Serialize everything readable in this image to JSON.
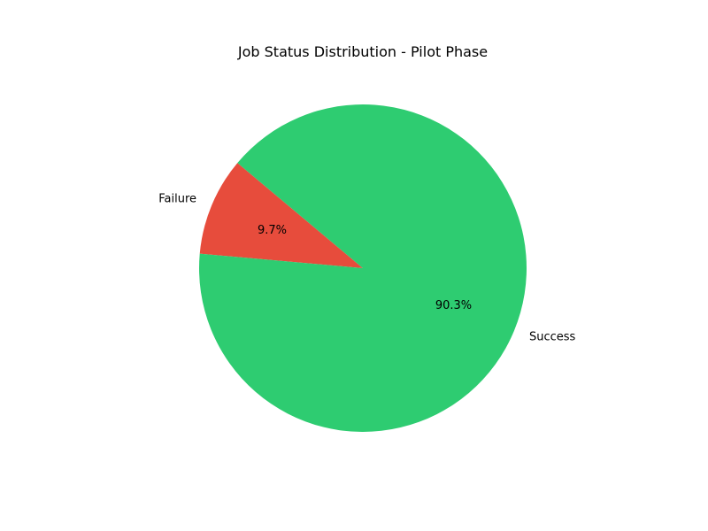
{
  "chart_data": {
    "type": "pie",
    "title": "Job Status Distribution - Pilot Phase",
    "start_angle_deg": 140,
    "direction": "counterclockwise",
    "slices": [
      {
        "label": "Failure",
        "percent": 9.7,
        "pct_label": "9.7%",
        "color": "#e74c3c"
      },
      {
        "label": "Success",
        "percent": 90.3,
        "pct_label": "90.3%",
        "color": "#2ecc71"
      }
    ]
  }
}
